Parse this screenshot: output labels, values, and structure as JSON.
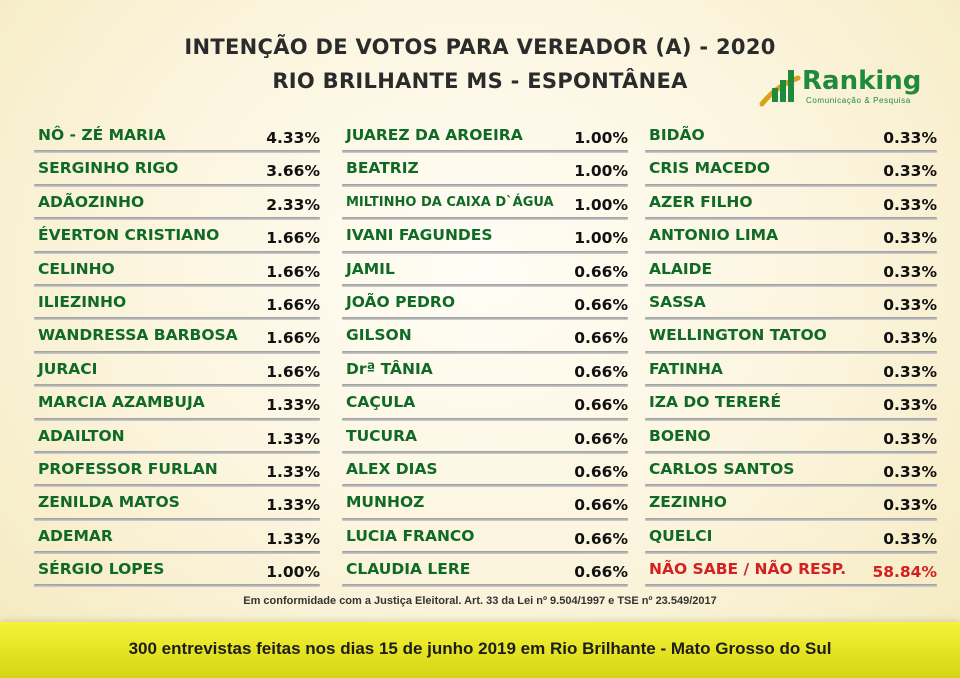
{
  "header": {
    "title_line1": "INTENÇÃO DE VOTOS PARA VEREADOR (A) - 2020",
    "title_line2": "RIO BRILHANTE MS - ESPONTÂNEA"
  },
  "logo": {
    "name": "Ranking",
    "tagline": "Comunicação & Pesquisa",
    "colors": {
      "green": "#1f8a3c",
      "gold": "#d9a21b"
    }
  },
  "columns": [
    [
      {
        "name": "NÔ - ZÉ MARIA",
        "pct": "4.33%"
      },
      {
        "name": "SERGINHO RIGO",
        "pct": "3.66%"
      },
      {
        "name": "ADÃOZINHO",
        "pct": "2.33%"
      },
      {
        "name": "ÉVERTON CRISTIANO",
        "pct": "1.66%"
      },
      {
        "name": "CELINHO",
        "pct": "1.66%"
      },
      {
        "name": "ILIEZINHO",
        "pct": "1.66%"
      },
      {
        "name": "WANDRESSA BARBOSA",
        "pct": "1.66%"
      },
      {
        "name": "JURACI",
        "pct": "1.66%"
      },
      {
        "name": "MARCIA AZAMBUJA",
        "pct": "1.33%"
      },
      {
        "name": "ADAILTON",
        "pct": "1.33%"
      },
      {
        "name": "PROFESSOR FURLAN",
        "pct": "1.33%"
      },
      {
        "name": "ZENILDA MATOS",
        "pct": "1.33%"
      },
      {
        "name": "ADEMAR",
        "pct": "1.33%"
      },
      {
        "name": "SÉRGIO LOPES",
        "pct": "1.00%"
      }
    ],
    [
      {
        "name": "JUAREZ DA AROEIRA",
        "pct": "1.00%"
      },
      {
        "name": "BEATRIZ",
        "pct": "1.00%"
      },
      {
        "name": "MILTINHO DA CAIXA D`ÁGUA",
        "pct": "1.00%",
        "small": true
      },
      {
        "name": "IVANI FAGUNDES",
        "pct": "1.00%"
      },
      {
        "name": "JAMIL",
        "pct": "0.66%"
      },
      {
        "name": "JOÃO PEDRO",
        "pct": "0.66%"
      },
      {
        "name": "GILSON",
        "pct": "0.66%"
      },
      {
        "name": "Drª TÂNIA",
        "pct": "0.66%"
      },
      {
        "name": "CAÇULA",
        "pct": "0.66%"
      },
      {
        "name": "TUCURA",
        "pct": "0.66%"
      },
      {
        "name": "ALEX DIAS",
        "pct": "0.66%"
      },
      {
        "name": "MUNHOZ",
        "pct": "0.66%"
      },
      {
        "name": "LUCIA FRANCO",
        "pct": "0.66%"
      },
      {
        "name": "CLAUDIA  LERE",
        "pct": "0.66%"
      }
    ],
    [
      {
        "name": "BIDÃO",
        "pct": "0.33%"
      },
      {
        "name": "CRIS MACEDO",
        "pct": "0.33%"
      },
      {
        "name": "AZER FILHO",
        "pct": "0.33%"
      },
      {
        "name": "ANTONIO LIMA",
        "pct": "0.33%"
      },
      {
        "name": "ALAIDE",
        "pct": "0.33%"
      },
      {
        "name": "SASSA",
        "pct": "0.33%"
      },
      {
        "name": "WELLINGTON TATOO",
        "pct": "0.33%"
      },
      {
        "name": "FATINHA",
        "pct": "0.33%"
      },
      {
        "name": "IZA DO TERERÉ",
        "pct": "0.33%"
      },
      {
        "name": "BOENO",
        "pct": "0.33%"
      },
      {
        "name": "CARLOS SANTOS",
        "pct": "0.33%"
      },
      {
        "name": "ZEZINHO",
        "pct": "0.33%"
      },
      {
        "name": "QUELCI",
        "pct": "0.33%"
      },
      {
        "name": "NÃO SABE / NÃO RESP.",
        "pct": "58.84%",
        "highlight": true
      }
    ]
  ],
  "note": "Em conformidade com a Justiça Eleitoral. Art. 33 da Lei nº 9.504/1997 e TSE nº 23.549/2017",
  "footer": "300 entrevistas feitas nos dias 15 de junho 2019 em Rio Brilhante - Mato Grosso do Sul"
}
